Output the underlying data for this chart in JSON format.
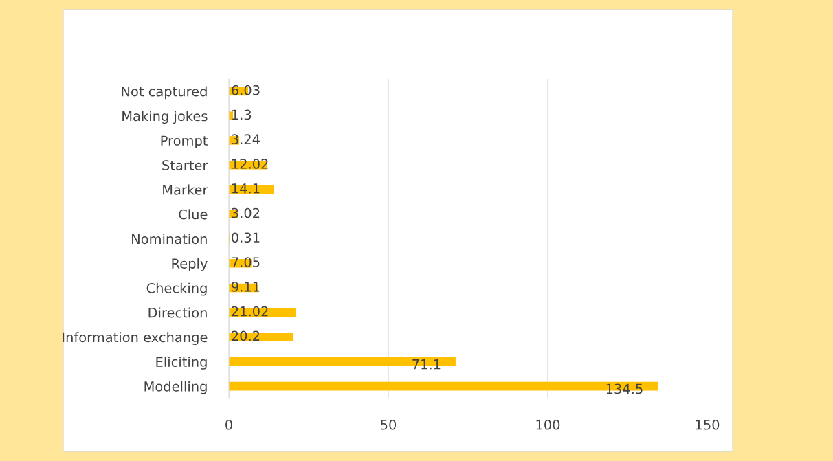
{
  "chart_data": {
    "type": "bar",
    "orientation": "horizontal",
    "categories": [
      "Not captured",
      "Making jokes",
      "Prompt",
      "Starter",
      "Marker",
      "Clue",
      "Nomination",
      "Reply",
      "Checking",
      "Direction",
      "Information exchange",
      "Eliciting",
      "Modelling"
    ],
    "values": [
      6.03,
      1.3,
      3.24,
      12.02,
      14.1,
      3.02,
      0.31,
      7.05,
      9.11,
      21.02,
      20.2,
      71.1,
      134.5
    ],
    "color": "#ffc000",
    "xlim": [
      0,
      150
    ],
    "xticks": [
      0,
      50,
      100,
      150
    ],
    "grid": "x",
    "data_labels": true
  }
}
